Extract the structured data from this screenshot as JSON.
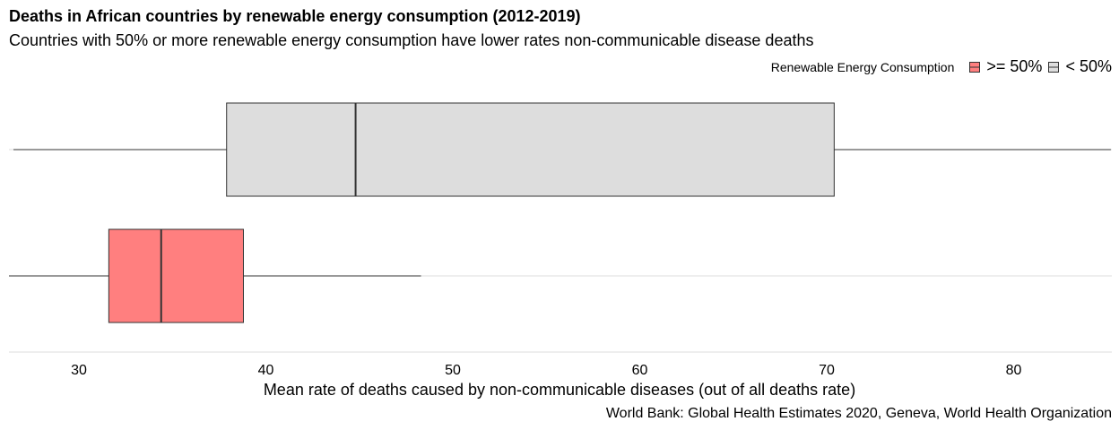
{
  "title": "Deaths in African countries by renewable energy consumption (2012-2019)",
  "subtitle": "Countries with 50% or more renewable energy consumption have lower rates non-communicable disease deaths",
  "caption": "World Bank: Global Health Estimates 2020, Geneva, World Health Organization",
  "legend": {
    "title": "Renewable Energy Consumption",
    "placement": "top-right",
    "items": [
      {
        "label": ">= 50%",
        "color": "#FF7F7F"
      },
      {
        "label": "< 50%",
        "color": "#DDDDDD"
      }
    ]
  },
  "chart_data": {
    "type": "boxplot",
    "orientation": "horizontal",
    "title": "Deaths in African countries by renewable energy consumption (2012-2019)",
    "subtitle": "Countries with 50% or more renewable energy consumption have lower rates non-communicable disease deaths",
    "xlabel": "Mean rate of deaths caused by non-communicable diseases (out of all deaths rate)",
    "ylabel": "",
    "xlim": [
      26.2,
      85.2
    ],
    "xticks": [
      30,
      40,
      50,
      60,
      70,
      80
    ],
    "grid": true,
    "series": [
      {
        "name": "< 50%",
        "color": "#DDDDDD",
        "min": 26.5,
        "q1": 37.9,
        "median": 44.8,
        "q3": 70.4,
        "max": 85.2
      },
      {
        "name": ">= 50%",
        "color": "#FF7F7F",
        "min": 26.2,
        "q1": 31.6,
        "median": 34.4,
        "q3": 38.8,
        "max": 48.3
      }
    ]
  }
}
